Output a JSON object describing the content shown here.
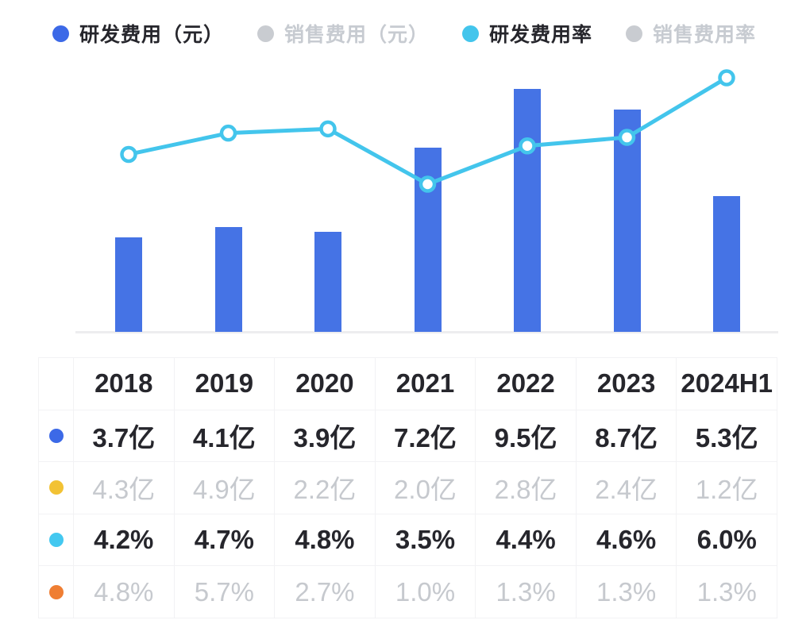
{
  "accent_colors": {
    "bar_blue": "#4573e5",
    "dot_blue": "#3c69e7",
    "cyan": "#43c5ec",
    "yellow": "#f2c234",
    "orange": "#ef7e33",
    "gray": "#c9ccd1"
  },
  "legend": {
    "items": [
      {
        "label": "研发费用（元）",
        "color": "#3c69e7",
        "active": true
      },
      {
        "label": "销售费用（元）",
        "color": "#c9ccd1",
        "active": false
      },
      {
        "label": "研发费用率",
        "color": "#43c5ec",
        "active": true
      },
      {
        "label": "销售费用率",
        "color": "#c9ccd1",
        "active": false
      }
    ]
  },
  "chart_data": {
    "type": "bar",
    "subtype": "bar+line combo",
    "categories": [
      "2018",
      "2019",
      "2020",
      "2021",
      "2022",
      "2023",
      "2024H1"
    ],
    "series": [
      {
        "name": "研发费用（元）",
        "kind": "bar",
        "unit": "亿",
        "color": "#4573e5",
        "visible": true,
        "values": [
          3.7,
          4.1,
          3.9,
          7.2,
          9.5,
          8.7,
          5.3
        ]
      },
      {
        "name": "销售费用（元）",
        "kind": "bar",
        "unit": "亿",
        "color": "#f2c234",
        "visible": false,
        "values": [
          4.3,
          4.9,
          2.2,
          2.0,
          2.8,
          2.4,
          1.2
        ]
      },
      {
        "name": "研发费用率",
        "kind": "line",
        "unit": "%",
        "color": "#43c5ec",
        "visible": true,
        "values": [
          4.2,
          4.7,
          4.8,
          3.5,
          4.4,
          4.6,
          6.0
        ]
      },
      {
        "name": "销售费用率",
        "kind": "line",
        "unit": "%",
        "color": "#ef7e33",
        "visible": false,
        "values": [
          4.8,
          5.7,
          2.7,
          1.0,
          1.3,
          1.3,
          1.3
        ]
      }
    ],
    "title": "",
    "xlabel": "",
    "ylabel": "",
    "axis_labels_shown": false,
    "grid": false,
    "legend_position": "top"
  },
  "table": {
    "header": [
      "",
      "2018",
      "2019",
      "2020",
      "2021",
      "2022",
      "2023",
      "2024H1"
    ],
    "rows": [
      {
        "dot_color": "#3c69e7",
        "active": true,
        "cells": [
          "3.7亿",
          "4.1亿",
          "3.9亿",
          "7.2亿",
          "9.5亿",
          "8.7亿",
          "5.3亿"
        ]
      },
      {
        "dot_color": "#f2c234",
        "active": false,
        "cells": [
          "4.3亿",
          "4.9亿",
          "2.2亿",
          "2.0亿",
          "2.8亿",
          "2.4亿",
          "1.2亿"
        ]
      },
      {
        "dot_color": "#43c8f0",
        "active": true,
        "cells": [
          "4.2%",
          "4.7%",
          "4.8%",
          "3.5%",
          "4.4%",
          "4.6%",
          "6.0%"
        ]
      },
      {
        "dot_color": "#ef7e33",
        "active": false,
        "cells": [
          "4.8%",
          "5.7%",
          "2.7%",
          "1.0%",
          "1.3%",
          "1.3%",
          "1.3%"
        ]
      }
    ]
  }
}
